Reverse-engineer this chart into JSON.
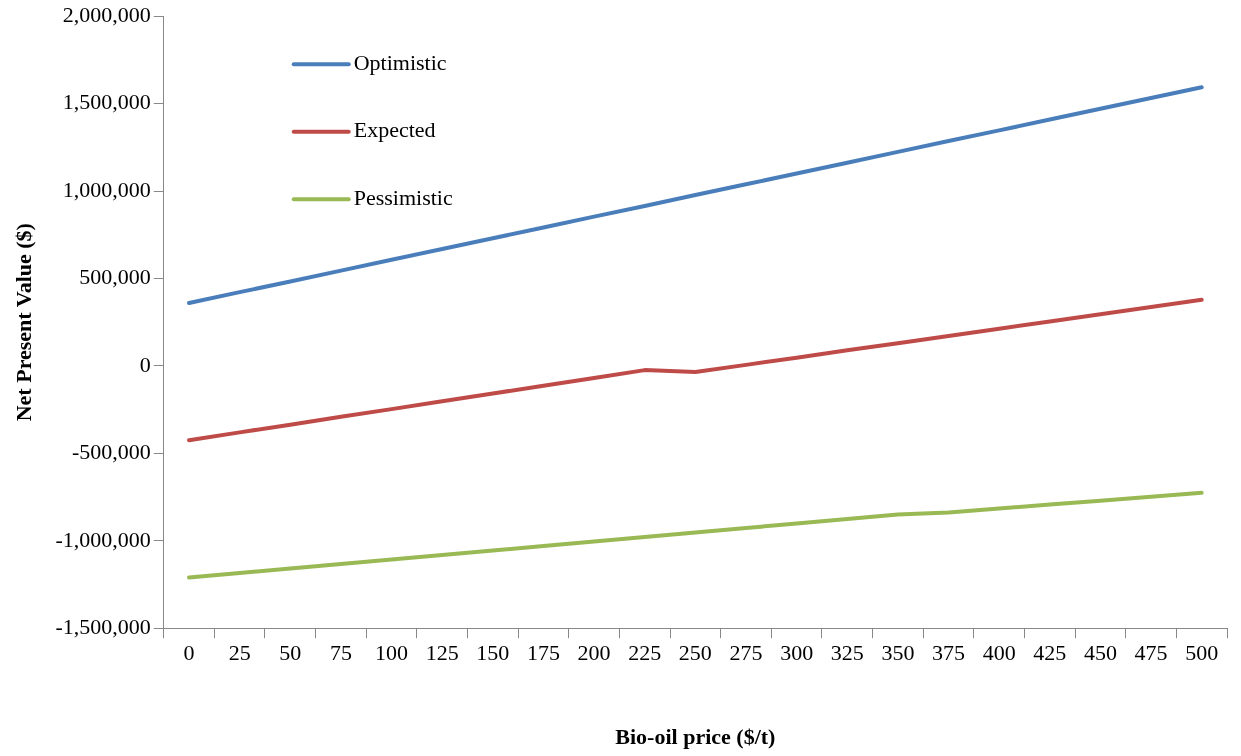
{
  "chart_data": {
    "type": "line",
    "xlabel": "Bio-oil price ($/t)",
    "ylabel": "Net Present Value ($)",
    "categories": [
      "0",
      "25",
      "50",
      "75",
      "100",
      "125",
      "150",
      "175",
      "200",
      "225",
      "250",
      "275",
      "300",
      "325",
      "350",
      "375",
      "400",
      "425",
      "450",
      "475",
      "500"
    ],
    "series": [
      {
        "name": "Optimistic",
        "color": "#4a7ebb",
        "values": [
          360000,
          422000,
          483000,
          545000,
          607000,
          669000,
          730000,
          792000,
          854000,
          915000,
          977000,
          1039000,
          1100000,
          1162000,
          1224000,
          1286000,
          1347000,
          1409000,
          1471000,
          1532000,
          1594000
        ]
      },
      {
        "name": "Expected",
        "color": "#be4b48",
        "values": [
          -425000,
          -380000,
          -336000,
          -291000,
          -247000,
          -202000,
          -158000,
          -113000,
          -69000,
          -24000,
          -35000,
          6000,
          47000,
          89000,
          130000,
          171000,
          213000,
          254000,
          295000,
          337000,
          378000
        ]
      },
      {
        "name": "Pessimistic",
        "color": "#98b954",
        "values": [
          -1210000,
          -1184000,
          -1159000,
          -1133000,
          -1107000,
          -1081000,
          -1056000,
          -1030000,
          -1004000,
          -979000,
          -953000,
          -927000,
          -901000,
          -876000,
          -850000,
          -838000,
          -816000,
          -793000,
          -771000,
          -748000,
          -726000
        ]
      }
    ],
    "ylim": [
      -1500000,
      2000000
    ],
    "yticks": [
      {
        "value": -1500000,
        "label": "-1,500,000"
      },
      {
        "value": -1000000,
        "label": "-1,000,000"
      },
      {
        "value": -500000,
        "label": "-500,000"
      },
      0,
      {
        "value": 500000,
        "label": "500,000"
      },
      {
        "value": 1000000,
        "label": "1,000,000"
      },
      {
        "value": 1500000,
        "label": "1,500,000"
      },
      {
        "value": 2000000,
        "label": "2,000,000"
      }
    ],
    "grid": false,
    "legend": "top left",
    "marker": "none",
    "line_style": "solid"
  }
}
